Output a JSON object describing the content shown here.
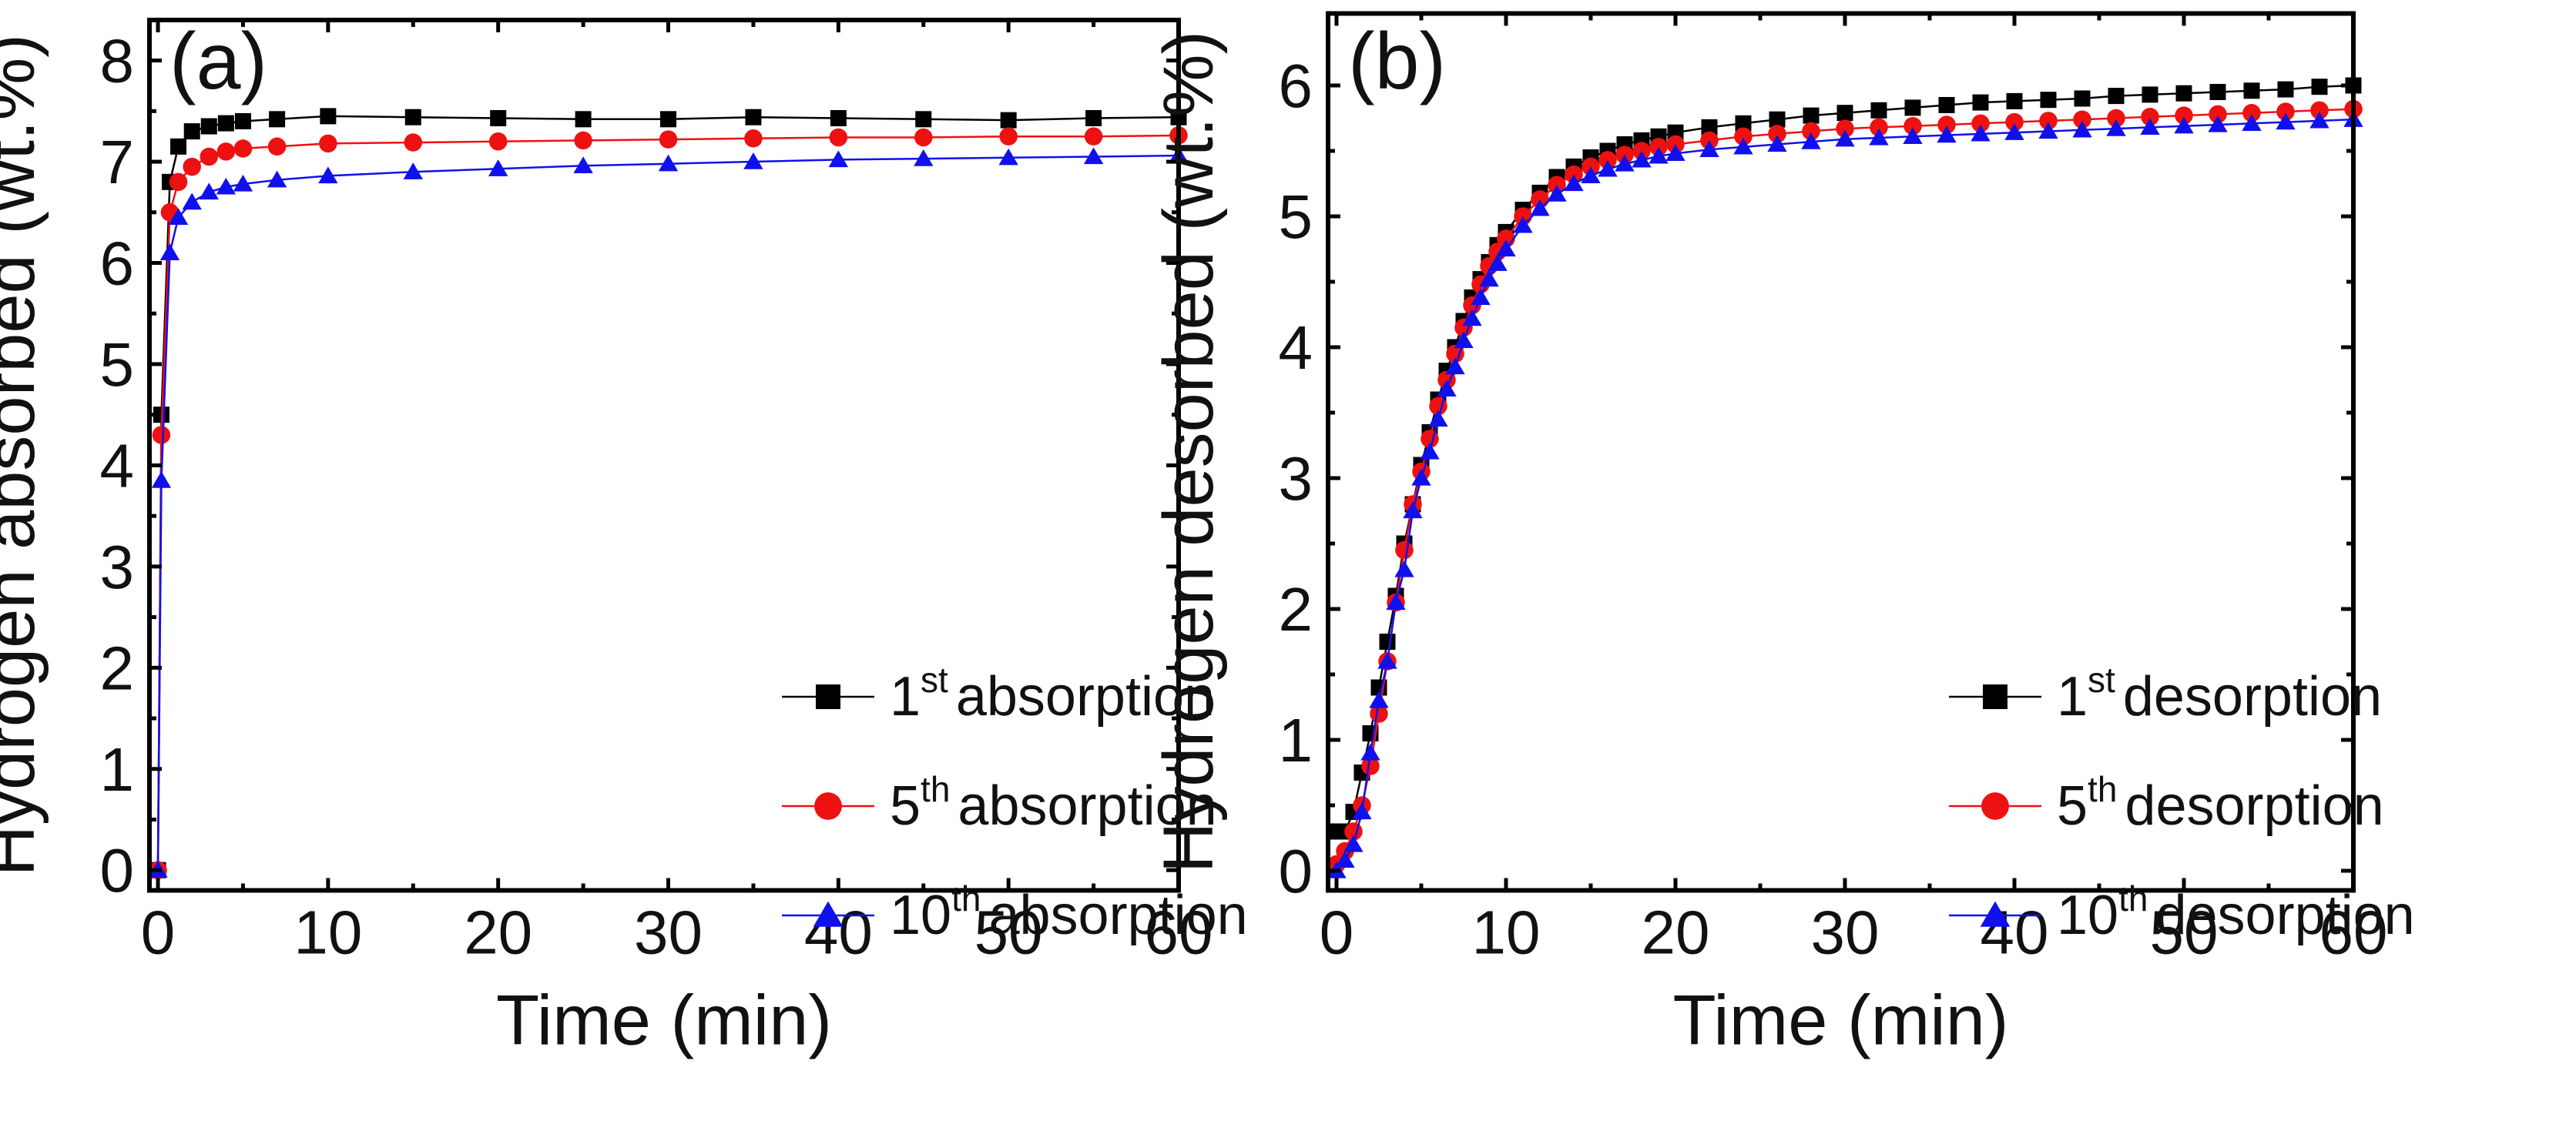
{
  "colors": {
    "black": "#000000",
    "red": "#ee1111",
    "blue": "#1010ee",
    "axis": "#000000"
  },
  "chart_data": [
    {
      "type": "line",
      "panel_label": "(a)",
      "xlabel": "Time (min)",
      "ylabel": "Hydrogen absorbed (wt.%)",
      "xlim": [
        -0.5,
        60
      ],
      "ylim": [
        -0.2,
        8.4
      ],
      "xticks": [
        0,
        10,
        20,
        30,
        40,
        50,
        60
      ],
      "yticks": [
        0,
        1,
        2,
        3,
        4,
        5,
        6,
        7,
        8
      ],
      "legend_position": "bottom-right",
      "series": [
        {
          "name": "1st absorption",
          "legend_prefix": "1",
          "legend_sup": "st",
          "legend_suffix": "absorption",
          "color": "#000000",
          "marker": "square",
          "x": [
            0,
            0.2,
            0.7,
            1.2,
            2,
            3,
            4,
            5,
            7,
            10,
            15,
            20,
            25,
            30,
            35,
            40,
            45,
            50,
            55,
            60
          ],
          "y": [
            0,
            4.5,
            6.8,
            7.15,
            7.3,
            7.35,
            7.38,
            7.4,
            7.42,
            7.45,
            7.44,
            7.43,
            7.42,
            7.42,
            7.44,
            7.43,
            7.42,
            7.41,
            7.43,
            7.44
          ]
        },
        {
          "name": "5th absorption",
          "legend_prefix": "5",
          "legend_sup": "th",
          "legend_suffix": "absorption",
          "color": "#ee1111",
          "marker": "circle",
          "x": [
            0,
            0.2,
            0.7,
            1.2,
            2,
            3,
            4,
            5,
            7,
            10,
            15,
            20,
            25,
            30,
            35,
            40,
            45,
            50,
            55,
            60
          ],
          "y": [
            0,
            4.3,
            6.5,
            6.8,
            6.95,
            7.05,
            7.1,
            7.13,
            7.15,
            7.18,
            7.19,
            7.2,
            7.21,
            7.22,
            7.23,
            7.24,
            7.24,
            7.25,
            7.25,
            7.26
          ]
        },
        {
          "name": "10th absorption",
          "legend_prefix": "10",
          "legend_sup": "th",
          "legend_suffix": "absorption",
          "color": "#1010ee",
          "marker": "triangle",
          "x": [
            0,
            0.2,
            0.7,
            1.2,
            2,
            3,
            4,
            5,
            7,
            10,
            15,
            20,
            25,
            30,
            35,
            40,
            45,
            50,
            55,
            60
          ],
          "y": [
            0,
            3.85,
            6.1,
            6.45,
            6.6,
            6.7,
            6.75,
            6.78,
            6.82,
            6.86,
            6.9,
            6.93,
            6.96,
            6.98,
            7.0,
            7.02,
            7.03,
            7.04,
            7.05,
            7.06
          ]
        }
      ]
    },
    {
      "type": "line",
      "panel_label": "(b)",
      "xlabel": "Time (min)",
      "ylabel": "Hydrogen desorbed (wt.%)",
      "xlim": [
        -0.5,
        60
      ],
      "ylim": [
        -0.15,
        6.55
      ],
      "xticks": [
        0,
        10,
        20,
        30,
        40,
        50,
        60
      ],
      "yticks": [
        0,
        1,
        2,
        3,
        4,
        5,
        6
      ],
      "legend_position": "bottom-right",
      "series": [
        {
          "name": "1st desorption",
          "legend_prefix": "1",
          "legend_sup": "st",
          "legend_suffix": "desorption",
          "color": "#000000",
          "marker": "square",
          "x": [
            0,
            0.5,
            1,
            1.5,
            2,
            2.5,
            3,
            3.5,
            4,
            4.5,
            5,
            5.5,
            6,
            6.5,
            7,
            7.5,
            8,
            8.5,
            9,
            9.5,
            10,
            11,
            12,
            13,
            14,
            15,
            16,
            17,
            18,
            19,
            20,
            22,
            24,
            26,
            28,
            30,
            32,
            34,
            36,
            38,
            40,
            42,
            44,
            46,
            48,
            50,
            52,
            54,
            56,
            58,
            60
          ],
          "y": [
            0.3,
            0.3,
            0.45,
            0.75,
            1.05,
            1.4,
            1.75,
            2.1,
            2.5,
            2.8,
            3.1,
            3.35,
            3.6,
            3.82,
            4.0,
            4.2,
            4.38,
            4.52,
            4.65,
            4.78,
            4.88,
            5.05,
            5.18,
            5.3,
            5.38,
            5.45,
            5.5,
            5.55,
            5.58,
            5.61,
            5.64,
            5.68,
            5.71,
            5.74,
            5.77,
            5.79,
            5.81,
            5.83,
            5.85,
            5.87,
            5.88,
            5.89,
            5.9,
            5.92,
            5.93,
            5.94,
            5.95,
            5.96,
            5.97,
            5.99,
            6.0
          ]
        },
        {
          "name": "5th desorption",
          "legend_prefix": "5",
          "legend_sup": "th",
          "legend_suffix": "desorption",
          "color": "#ee1111",
          "marker": "circle",
          "x": [
            0,
            0.5,
            1,
            1.5,
            2,
            2.5,
            3,
            3.5,
            4,
            4.5,
            5,
            5.5,
            6,
            6.5,
            7,
            7.5,
            8,
            8.5,
            9,
            9.5,
            10,
            11,
            12,
            13,
            14,
            15,
            16,
            17,
            18,
            19,
            20,
            22,
            24,
            26,
            28,
            30,
            32,
            34,
            36,
            38,
            40,
            42,
            44,
            46,
            48,
            50,
            52,
            54,
            56,
            58,
            60
          ],
          "y": [
            0.05,
            0.15,
            0.3,
            0.5,
            0.8,
            1.2,
            1.6,
            2.05,
            2.45,
            2.8,
            3.05,
            3.3,
            3.55,
            3.75,
            3.95,
            4.15,
            4.32,
            4.48,
            4.62,
            4.73,
            4.83,
            5.0,
            5.13,
            5.24,
            5.32,
            5.38,
            5.43,
            5.47,
            5.5,
            5.53,
            5.55,
            5.58,
            5.61,
            5.63,
            5.65,
            5.67,
            5.68,
            5.69,
            5.7,
            5.71,
            5.72,
            5.73,
            5.74,
            5.75,
            5.76,
            5.77,
            5.78,
            5.79,
            5.8,
            5.81,
            5.82
          ]
        },
        {
          "name": "10th desorption",
          "legend_prefix": "10",
          "legend_sup": "th",
          "legend_suffix": "desorption",
          "color": "#1010ee",
          "marker": "triangle",
          "x": [
            0,
            0.5,
            1,
            1.5,
            2,
            2.5,
            3,
            3.5,
            4,
            4.5,
            5,
            5.5,
            6,
            6.5,
            7,
            7.5,
            8,
            8.5,
            9,
            9.5,
            10,
            11,
            12,
            13,
            14,
            15,
            16,
            17,
            18,
            19,
            20,
            22,
            24,
            26,
            28,
            30,
            32,
            34,
            36,
            38,
            40,
            42,
            44,
            46,
            48,
            50,
            52,
            54,
            56,
            58,
            60
          ],
          "y": [
            0,
            0.08,
            0.2,
            0.45,
            0.9,
            1.3,
            1.6,
            2.05,
            2.3,
            2.75,
            3.0,
            3.2,
            3.45,
            3.68,
            3.85,
            4.05,
            4.22,
            4.38,
            4.52,
            4.64,
            4.75,
            4.93,
            5.06,
            5.17,
            5.25,
            5.31,
            5.36,
            5.4,
            5.43,
            5.46,
            5.48,
            5.51,
            5.53,
            5.55,
            5.57,
            5.59,
            5.6,
            5.61,
            5.62,
            5.63,
            5.64,
            5.65,
            5.66,
            5.67,
            5.68,
            5.69,
            5.7,
            5.71,
            5.72,
            5.73,
            5.74
          ]
        }
      ]
    }
  ]
}
